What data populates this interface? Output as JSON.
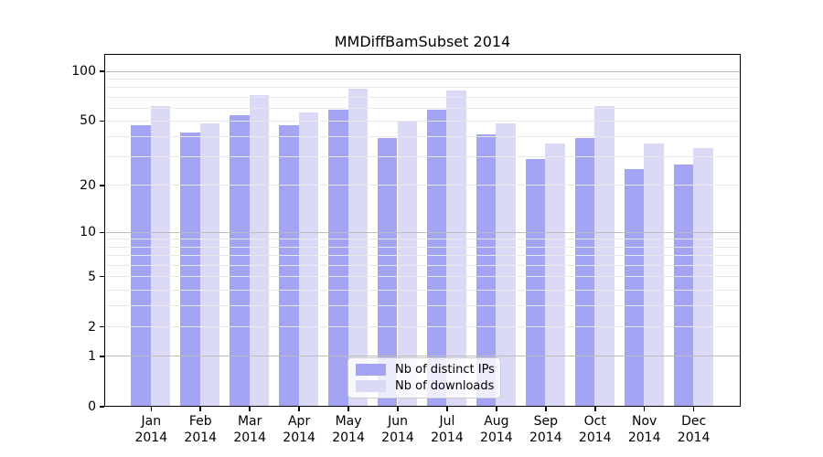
{
  "title": "MMDiffBamSubset 2014",
  "chart_data": {
    "type": "bar",
    "title": "MMDiffBamSubset 2014",
    "x_ticks": [
      {
        "line1": "Jan",
        "line2": "2014"
      },
      {
        "line1": "Feb",
        "line2": "2014"
      },
      {
        "line1": "Mar",
        "line2": "2014"
      },
      {
        "line1": "Apr",
        "line2": "2014"
      },
      {
        "line1": "May",
        "line2": "2014"
      },
      {
        "line1": "Jun",
        "line2": "2014"
      },
      {
        "line1": "Jul",
        "line2": "2014"
      },
      {
        "line1": "Aug",
        "line2": "2014"
      },
      {
        "line1": "Sep",
        "line2": "2014"
      },
      {
        "line1": "Oct",
        "line2": "2014"
      },
      {
        "line1": "Nov",
        "line2": "2014"
      },
      {
        "line1": "Dec",
        "line2": "2014"
      }
    ],
    "categories": [
      "Jan 2014",
      "Feb 2014",
      "Mar 2014",
      "Apr 2014",
      "May 2014",
      "Jun 2014",
      "Jul 2014",
      "Aug 2014",
      "Sep 2014",
      "Oct 2014",
      "Nov 2014",
      "Dec 2014"
    ],
    "series": [
      {
        "name": "Nb of distinct IPs",
        "color": "#a4a4f4",
        "values": [
          47,
          42,
          54,
          47,
          58,
          39,
          58,
          41,
          29,
          39,
          25,
          27
        ]
      },
      {
        "name": "Nb of downloads",
        "color": "#dadaf7",
        "values": [
          61,
          48,
          71,
          56,
          78,
          49,
          76,
          48,
          36,
          61,
          36,
          34
        ]
      }
    ],
    "yscale": "log1p",
    "ylim": [
      0,
      127
    ],
    "yticks": [
      0,
      1,
      2,
      5,
      10,
      20,
      50,
      100
    ],
    "major_gridlines": [
      1,
      10,
      100
    ],
    "minor_gridlines": [
      2,
      3,
      4,
      5,
      6,
      7,
      8,
      9,
      20,
      30,
      40,
      50,
      60,
      70,
      80,
      90
    ],
    "grid": true,
    "legend_position": "lower center"
  },
  "legend": {
    "items": [
      {
        "label": "Nb of distinct IPs"
      },
      {
        "label": "Nb of downloads"
      }
    ]
  },
  "colors": {
    "bar_ips": "#a4a4f4",
    "bar_downloads": "#dadaf7",
    "grid_major": "#bdbdbd",
    "grid_minor": "#e9e9e9",
    "spine": "#000000",
    "legend_border": "#cccccc"
  }
}
